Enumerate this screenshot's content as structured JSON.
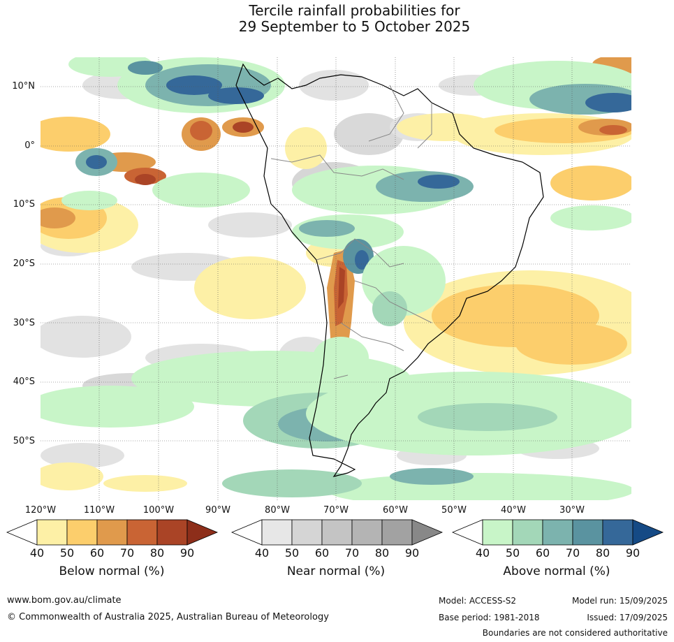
{
  "title": {
    "line1": "Tercile rainfall probabilities for",
    "line2": "29 September to 5 October 2025"
  },
  "map": {
    "lat_labels": [
      "10°N",
      "0°",
      "10°S",
      "20°S",
      "30°S",
      "40°S",
      "50°S"
    ],
    "lon_labels": [
      "120°W",
      "110°W",
      "100°W",
      "90°W",
      "80°W",
      "70°W",
      "60°W",
      "50°W",
      "40°W",
      "30°W"
    ]
  },
  "legend": {
    "below": {
      "title": "Below normal (%)",
      "ticks": [
        "40",
        "50",
        "60",
        "70",
        "80",
        "90"
      ],
      "colors": [
        "#fdf0a6",
        "#fcce6c",
        "#e09a4c",
        "#c96434",
        "#aa4426",
        "#8d2e1a"
      ]
    },
    "near": {
      "title": "Near normal (%)",
      "ticks": [
        "40",
        "50",
        "60",
        "70",
        "80",
        "90"
      ],
      "colors": [
        "#e7e7e7",
        "#d5d5d5",
        "#c4c4c4",
        "#b4b4b4",
        "#a2a2a2",
        "#888888"
      ]
    },
    "above": {
      "title": "Above normal (%)",
      "ticks": [
        "40",
        "50",
        "60",
        "70",
        "80",
        "90"
      ],
      "colors": [
        "#c8f5c8",
        "#a3d7b8",
        "#7cb3ae",
        "#5a93a0",
        "#356899",
        "#154a85"
      ]
    }
  },
  "footer": {
    "url": "www.bom.gov.au/climate",
    "copyright": "© Commonwealth of Australia 2025, Australian Bureau of Meteorology",
    "model": "Model: ACCESS-S2",
    "model_run": "Model run: 15/09/2025",
    "base_period": "Base period: 1981-2018",
    "issued": "Issued: 17/09/2025",
    "disclaimer": "Boundaries are not considered authoritative"
  }
}
